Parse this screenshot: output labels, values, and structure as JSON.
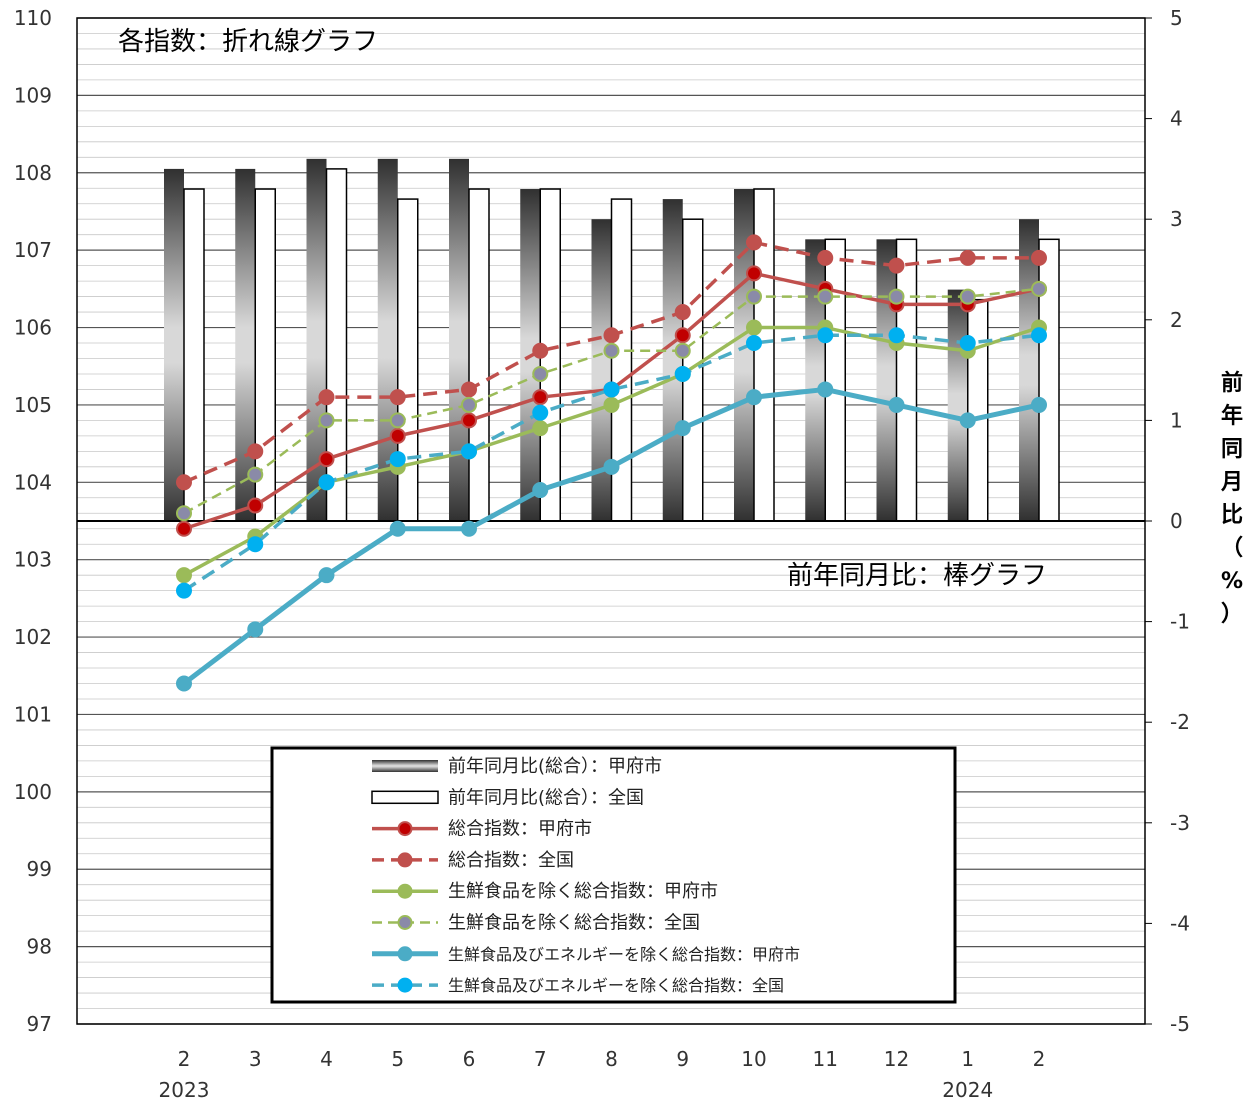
{
  "chart_data": {
    "type": "bar+line",
    "categories": [
      "2",
      "3",
      "4",
      "5",
      "6",
      "7",
      "8",
      "9",
      "10",
      "11",
      "12",
      "1",
      "2"
    ],
    "year_labels": [
      {
        "index": 0,
        "label": "2023"
      },
      {
        "index": 11,
        "label": "2024"
      }
    ],
    "y_left": {
      "min": 97,
      "max": 110,
      "ticks": [
        97,
        98,
        99,
        100,
        101,
        102,
        103,
        104,
        105,
        106,
        107,
        108,
        109,
        110
      ]
    },
    "y_right": {
      "min": -5,
      "max": 5,
      "ticks": [
        -5,
        -4,
        -3,
        -2,
        -1,
        0,
        1,
        2,
        3,
        4,
        5
      ],
      "label_chars": [
        "前",
        "年",
        "同",
        "月",
        "比",
        "（",
        "%",
        "）"
      ]
    },
    "annotations": {
      "lines_title": "各指数：折れ線グラフ",
      "bars_title": "前年同月比：棒グラフ"
    },
    "bar_series": [
      {
        "name": "前年同月比(総合）：甲府市",
        "axis": "right",
        "style": "gradient",
        "values": [
          3.5,
          3.5,
          3.6,
          3.6,
          3.6,
          3.3,
          3.0,
          3.2,
          3.3,
          2.8,
          2.8,
          2.3,
          3.0
        ]
      },
      {
        "name": "前年同月比(総合）：全国",
        "axis": "right",
        "style": "white",
        "values": [
          3.3,
          3.3,
          3.5,
          3.2,
          3.3,
          3.3,
          3.2,
          3.0,
          3.3,
          2.8,
          2.8,
          2.2,
          2.8
        ]
      }
    ],
    "line_series": [
      {
        "name": "総合指数：甲府市",
        "axis": "left",
        "color": "#c0504d",
        "dash": false,
        "marker": "#c00000",
        "marker_stroke": "#c0504d",
        "values": [
          103.4,
          103.7,
          104.3,
          104.6,
          104.8,
          105.1,
          105.2,
          105.9,
          106.7,
          106.5,
          106.3,
          106.3,
          106.5
        ]
      },
      {
        "name": "総合指数：全国",
        "axis": "left",
        "color": "#c0504d",
        "dash": true,
        "marker": "#c0504d",
        "marker_stroke": "#c0504d",
        "values": [
          104.0,
          104.4,
          105.1,
          105.1,
          105.2,
          105.7,
          105.9,
          106.2,
          107.1,
          106.9,
          106.8,
          106.9,
          106.9
        ]
      },
      {
        "name": "生鮮食品を除く総合指数：甲府市",
        "axis": "left",
        "color": "#9bbb59",
        "dash": false,
        "marker": "#9bbb59",
        "marker_stroke": "#9bbb59",
        "values": [
          102.8,
          103.3,
          104.0,
          104.2,
          104.4,
          104.7,
          105.0,
          105.4,
          106.0,
          106.0,
          105.8,
          105.7,
          106.0
        ]
      },
      {
        "name": "生鮮食品を除く総合指数：全国",
        "axis": "left",
        "color": "#9bbb59",
        "dash": true,
        "thin": true,
        "marker": "#8a8aa8",
        "marker_stroke": "#9bbb59",
        "values": [
          103.6,
          104.1,
          104.8,
          104.8,
          105.0,
          105.4,
          105.7,
          105.7,
          106.4,
          106.4,
          106.4,
          106.4,
          106.5
        ]
      },
      {
        "name": "生鮮食品及びエネルギーを除く総合指数：甲府市",
        "axis": "left",
        "color": "#4bacc6",
        "dash": false,
        "thick": true,
        "marker": "#4bacc6",
        "marker_stroke": "#4bacc6",
        "values": [
          101.4,
          102.1,
          102.8,
          103.4,
          103.4,
          103.9,
          104.2,
          104.7,
          105.1,
          105.2,
          105.0,
          104.8,
          105.0
        ]
      },
      {
        "name": "生鮮食品及びエネルギーを除く総合指数：全国",
        "axis": "left",
        "color": "#4bacc6",
        "dash": true,
        "marker": "#00b0f0",
        "marker_stroke": "#00b0f0",
        "values": [
          102.6,
          103.2,
          104.0,
          104.3,
          104.4,
          104.9,
          105.2,
          105.4,
          105.8,
          105.9,
          105.9,
          105.8,
          105.9
        ]
      }
    ],
    "legend": {
      "placement": "bottom-center"
    },
    "grid": true
  }
}
